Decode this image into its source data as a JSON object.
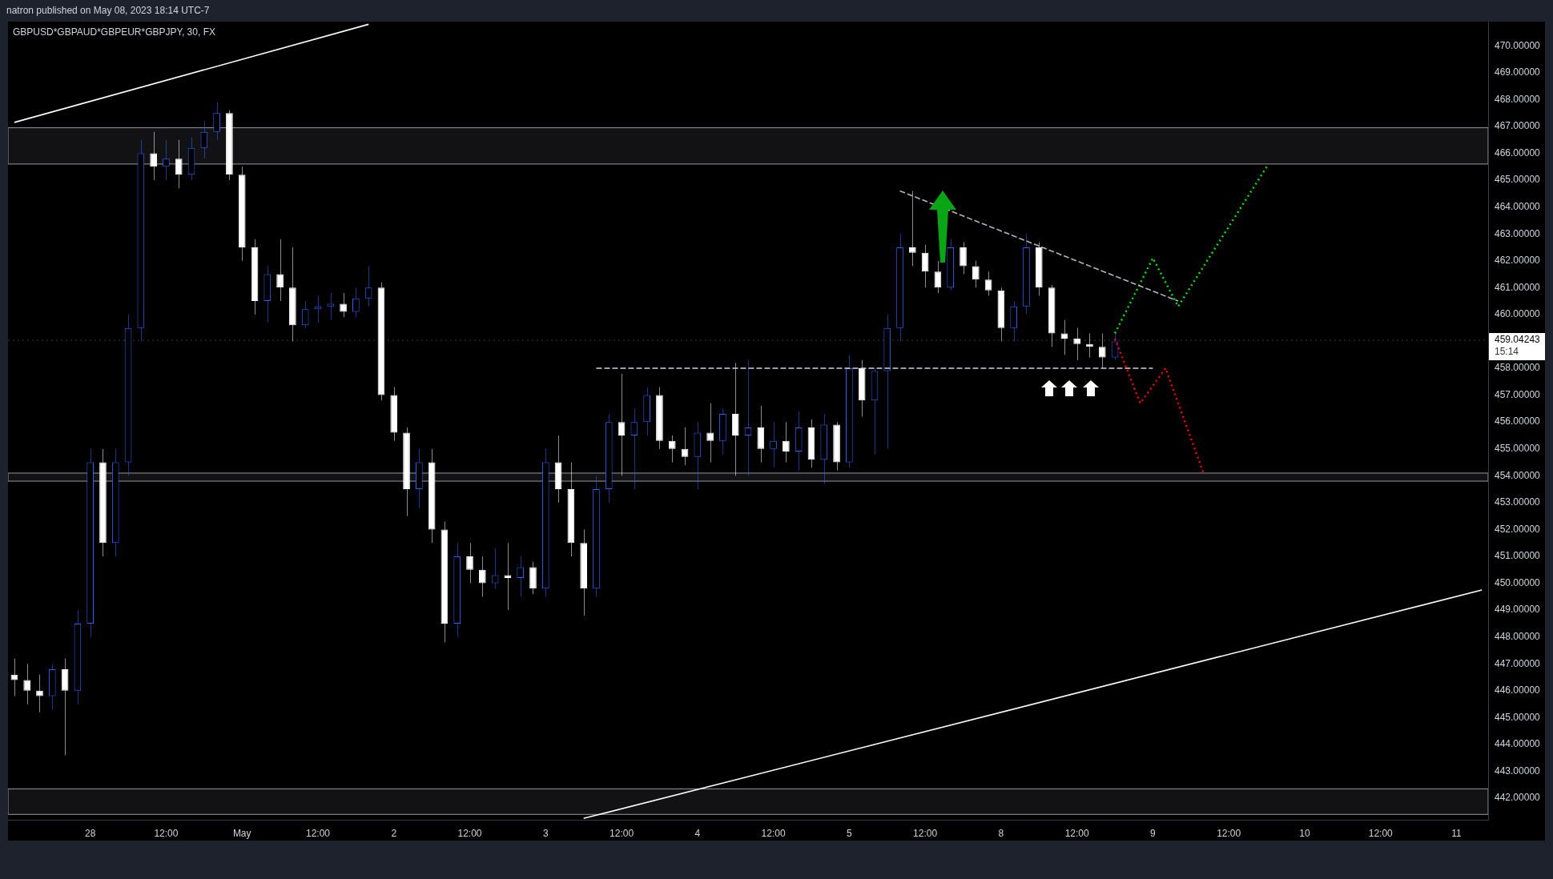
{
  "chart_data": {
    "type": "candlestick",
    "title": "GBPUSD*GBPAUD*GBPEUR*GBPJPY, 30, FX",
    "annotations": [
      "natron published on May 08, 2023 18:14 UTC-7",
      "15:14"
    ],
    "categories": [
      null,
      null,
      null,
      null,
      null,
      null,
      "28",
      null,
      null,
      null,
      null,
      null,
      "12:00",
      null,
      null,
      null,
      null,
      null,
      "May",
      null,
      null,
      null,
      null,
      null,
      "12:00",
      null,
      null,
      null,
      null,
      null,
      "2",
      null,
      null,
      null,
      null,
      null,
      "12:00",
      null,
      null,
      null,
      null,
      null,
      "3",
      null,
      null,
      null,
      null,
      null,
      "12:00",
      null,
      null,
      null,
      null,
      null,
      "4",
      null,
      null,
      null,
      null,
      null,
      "12:00",
      null,
      null,
      null,
      null,
      null,
      "5",
      null,
      null,
      null,
      null,
      null,
      "12:00",
      null,
      null,
      null,
      null,
      null,
      "8",
      null,
      null,
      null,
      null,
      null,
      "12:00",
      null,
      null,
      null,
      null,
      null,
      "9",
      null,
      null,
      null,
      null,
      null,
      "12:00",
      null,
      null,
      null,
      null,
      null,
      "10",
      null,
      null,
      null,
      null,
      null,
      "12:00",
      null,
      null,
      null,
      null,
      null,
      "11",
      null,
      null
    ],
    "ohlc": [
      [
        446.6,
        447.2,
        445.8,
        446.4
      ],
      [
        446.4,
        447,
        445.5,
        446.0
      ],
      [
        446.0,
        446.6,
        445.2,
        445.8
      ],
      [
        445.8,
        447,
        445.3,
        446.8
      ],
      [
        446.8,
        447.2,
        443.6,
        446.0
      ],
      [
        446.0,
        449,
        445.5,
        448.5
      ],
      [
        448.5,
        455.0,
        448,
        454.5
      ],
      [
        454.5,
        455,
        451,
        451.5
      ],
      [
        451.5,
        455,
        451,
        454.5
      ],
      [
        454.5,
        460,
        454,
        459.5
      ],
      [
        459.5,
        466.5,
        459,
        466
      ],
      [
        466,
        466.8,
        465,
        465.5
      ],
      [
        465.5,
        466.5,
        465,
        465.8
      ],
      [
        465.8,
        466.5,
        464.7,
        465.2
      ],
      [
        465.2,
        466.6,
        465,
        466.2
      ],
      [
        466.2,
        467.2,
        465.8,
        466.8
      ],
      [
        466.8,
        467.9,
        466.5,
        467.5
      ],
      [
        467.5,
        467.6,
        465,
        465.2
      ],
      [
        465.2,
        465.5,
        462,
        462.5
      ],
      [
        462.5,
        462.8,
        460,
        460.5
      ],
      [
        460.5,
        461.8,
        459.7,
        461.5
      ],
      [
        461.5,
        462.8,
        460.5,
        461
      ],
      [
        461,
        462.5,
        459,
        459.6
      ],
      [
        459.6,
        460.5,
        459.5,
        460.2
      ],
      [
        460.2,
        460.7,
        459.7,
        460.3
      ],
      [
        460.3,
        460.8,
        459.8,
        460.4
      ],
      [
        460.4,
        460.8,
        459.9,
        460.1
      ],
      [
        460.1,
        461,
        459.9,
        460.6
      ],
      [
        460.6,
        461.8,
        460.3,
        461
      ],
      [
        461,
        461.2,
        456.8,
        457
      ],
      [
        457,
        457.3,
        455.3,
        455.6
      ],
      [
        455.6,
        455.8,
        452.5,
        453.5
      ],
      [
        453.5,
        455,
        452.8,
        454.5
      ],
      [
        454.5,
        455,
        451.5,
        452
      ],
      [
        452,
        452.3,
        447.8,
        448.5
      ],
      [
        448.5,
        451.5,
        448,
        451
      ],
      [
        451,
        451.5,
        450,
        450.5
      ],
      [
        450.5,
        451,
        449.5,
        450
      ],
      [
        450,
        451.3,
        449.8,
        450.3
      ],
      [
        450.3,
        451.5,
        449,
        450.2
      ],
      [
        450.2,
        451,
        449.5,
        450.6
      ],
      [
        450.6,
        450.8,
        449.6,
        449.8
      ],
      [
        449.8,
        455,
        449.5,
        454.5
      ],
      [
        454.5,
        455.5,
        453,
        453.5
      ],
      [
        453.5,
        454.5,
        451,
        451.5
      ],
      [
        451.5,
        452,
        448.8,
        449.8
      ],
      [
        449.8,
        454,
        449.5,
        453.5
      ],
      [
        453.5,
        456.3,
        453,
        456
      ],
      [
        456,
        457.8,
        454,
        455.5
      ],
      [
        455.5,
        456.5,
        453.5,
        456
      ],
      [
        456,
        457.3,
        455.5,
        457
      ],
      [
        457,
        457.3,
        455,
        455.3
      ],
      [
        455.3,
        455.5,
        454.5,
        455
      ],
      [
        455,
        455.8,
        454.4,
        454.7
      ],
      [
        454.7,
        456,
        453.5,
        455.6
      ],
      [
        455.6,
        456.7,
        454.5,
        455.3
      ],
      [
        455.3,
        456.5,
        454.8,
        456.3
      ],
      [
        456.3,
        458.2,
        454,
        455.5
      ],
      [
        455.5,
        458.3,
        454,
        455.8
      ],
      [
        455.8,
        456.6,
        454.5,
        455
      ],
      [
        455,
        456,
        454.3,
        455.3
      ],
      [
        455.3,
        456,
        454.5,
        454.9
      ],
      [
        454.9,
        456.4,
        454.2,
        455.8
      ],
      [
        455.8,
        456.1,
        454.3,
        454.6
      ],
      [
        454.6,
        456.3,
        453.7,
        455.9
      ],
      [
        455.9,
        456,
        454.2,
        454.5
      ],
      [
        454.5,
        458.5,
        454.3,
        458
      ],
      [
        458,
        458.3,
        456.2,
        456.8
      ],
      [
        456.8,
        458,
        454.8,
        457.9
      ],
      [
        457.9,
        460,
        455,
        459.5
      ],
      [
        459.5,
        463,
        459,
        462.5
      ],
      [
        462.5,
        464.6,
        461.8,
        462.3
      ],
      [
        462.3,
        462.6,
        461,
        461.6
      ],
      [
        461.6,
        462,
        460.8,
        461
      ],
      [
        461,
        462.8,
        460.9,
        462.5
      ],
      [
        462.5,
        462.7,
        461.5,
        461.8
      ],
      [
        461.8,
        462,
        461,
        461.3
      ],
      [
        461.3,
        461.6,
        460.7,
        460.9
      ],
      [
        460.9,
        461,
        459,
        459.5
      ],
      [
        459.5,
        460.5,
        459,
        460.3
      ],
      [
        460.3,
        463,
        460,
        462.5
      ],
      [
        462.5,
        462.7,
        460.7,
        461
      ],
      [
        461,
        461.1,
        458.8,
        459.3
      ],
      [
        459.3,
        459.8,
        458.5,
        459.1
      ],
      [
        459.1,
        459.5,
        458.3,
        458.9
      ],
      [
        458.9,
        459.3,
        458.4,
        458.8
      ],
      [
        458.8,
        459.3,
        458,
        458.4
      ],
      [
        458.4,
        459.4,
        458.3,
        459.0
      ],
      null,
      null,
      null,
      null,
      null,
      null,
      null,
      null,
      null,
      null,
      null,
      null,
      null,
      null,
      null,
      null,
      null,
      null,
      null,
      null,
      null,
      null,
      null,
      null,
      null,
      null,
      null,
      null,
      null
    ],
    "colors": [
      "#ffffff",
      "#ffffff",
      "#ffffff",
      "#2962ff",
      "#ffffff",
      "#2962ff",
      "#2962ff",
      "#ffffff",
      "#2962ff",
      "#2962ff",
      "#2962ff",
      "#ffffff",
      "#2962ff",
      "#ffffff",
      "#2962ff",
      "#2962ff",
      "#2962ff",
      "#ffffff",
      "#ffffff",
      "#ffffff",
      "#2962ff",
      "#ffffff",
      "#ffffff",
      "#2962ff",
      "#2962ff",
      "#2962ff",
      "#ffffff",
      "#2962ff",
      "#2962ff",
      "#ffffff",
      "#ffffff",
      "#ffffff",
      "#2962ff",
      "#ffffff",
      "#ffffff",
      "#2962ff",
      "#ffffff",
      "#ffffff",
      "#2962ff",
      "#ffffff",
      "#2962ff",
      "#ffffff",
      "#2962ff",
      "#ffffff",
      "#ffffff",
      "#ffffff",
      "#2962ff",
      "#2962ff",
      "#ffffff",
      "#2962ff",
      "#2962ff",
      "#ffffff",
      "#ffffff",
      "#ffffff",
      "#2962ff",
      "#ffffff",
      "#2962ff",
      "#ffffff",
      "#2962ff",
      "#ffffff",
      "#2962ff",
      "#ffffff",
      "#2962ff",
      "#ffffff",
      "#2962ff",
      "#ffffff",
      "#2962ff",
      "#ffffff",
      "#2962ff",
      "#2962ff",
      "#2962ff",
      "#ffffff",
      "#ffffff",
      "#ffffff",
      "#2962ff",
      "#ffffff",
      "#ffffff",
      "#ffffff",
      "#ffffff",
      "#2962ff",
      "#2962ff",
      "#ffffff",
      "#ffffff",
      "#ffffff",
      "#ffffff",
      "#ffffff",
      "#ffffff",
      "#2962ff",
      null,
      null,
      null,
      null,
      null,
      null,
      null,
      null,
      null,
      null,
      null,
      null,
      null,
      null,
      null,
      null,
      null,
      null,
      null,
      null,
      null,
      null,
      null,
      null,
      null,
      null,
      null,
      null,
      null
    ],
    "series": [
      {
        "type": "line",
        "color": "#ffffff",
        "line_style": "solid",
        "values": [
          467.15,
          null,
          null,
          null,
          null,
          null,
          null,
          null,
          null,
          null,
          null,
          null,
          null,
          null,
          null,
          null,
          null,
          null,
          null,
          null,
          null,
          null,
          null,
          null,
          null,
          null,
          null,
          null,
          470.8,
          null,
          null,
          null,
          null,
          null,
          null,
          null,
          null,
          null,
          null,
          null,
          null,
          null,
          null,
          null,
          null,
          null,
          null,
          null,
          null,
          null,
          null,
          null,
          null,
          null,
          null,
          null,
          null,
          null,
          null,
          null,
          null,
          null,
          null,
          null,
          null,
          null,
          null,
          null,
          null,
          null,
          null,
          null,
          null,
          null,
          null,
          null,
          null,
          null,
          null,
          null,
          null,
          null,
          null,
          null,
          null,
          null,
          null,
          null,
          null,
          null,
          null,
          null,
          null,
          null,
          null,
          null,
          null,
          null,
          null,
          null,
          null,
          null,
          null,
          null,
          null,
          null,
          null,
          null,
          null,
          null,
          null,
          null,
          null,
          null,
          null,
          null,
          null
        ]
      },
      {
        "type": "line",
        "color": "#ffffff",
        "line_style": "solid",
        "values": [
          null,
          null,
          null,
          null,
          null,
          null,
          null,
          null,
          null,
          null,
          null,
          null,
          null,
          null,
          null,
          null,
          null,
          null,
          null,
          null,
          null,
          null,
          null,
          null,
          null,
          null,
          null,
          null,
          null,
          null,
          null,
          null,
          null,
          null,
          null,
          null,
          null,
          null,
          null,
          null,
          null,
          null,
          null,
          null,
          null,
          441.25,
          null,
          null,
          null,
          null,
          null,
          null,
          null,
          null,
          null,
          null,
          null,
          null,
          null,
          null,
          null,
          null,
          null,
          null,
          null,
          null,
          null,
          null,
          null,
          null,
          null,
          null,
          null,
          null,
          null,
          null,
          null,
          null,
          null,
          null,
          null,
          null,
          null,
          null,
          null,
          null,
          null,
          null,
          null,
          null,
          null,
          null,
          null,
          null,
          null,
          null,
          null,
          null,
          null,
          null,
          null,
          null,
          null,
          null,
          null,
          null,
          null,
          null,
          null,
          null,
          null,
          null,
          null,
          null,
          null,
          null,
          449.75
        ]
      },
      {
        "type": "line",
        "color": "#b2b5be",
        "line_style": "dashed",
        "values": [
          null,
          null,
          null,
          null,
          null,
          null,
          null,
          null,
          null,
          null,
          null,
          null,
          null,
          null,
          null,
          null,
          null,
          null,
          null,
          null,
          null,
          null,
          null,
          null,
          null,
          null,
          null,
          null,
          null,
          null,
          null,
          null,
          null,
          null,
          null,
          null,
          null,
          null,
          null,
          null,
          null,
          null,
          null,
          null,
          null,
          null,
          null,
          null,
          null,
          null,
          null,
          null,
          null,
          null,
          null,
          null,
          null,
          null,
          null,
          null,
          null,
          null,
          null,
          null,
          null,
          null,
          null,
          null,
          null,
          null,
          464.6,
          null,
          null,
          null,
          null,
          null,
          null,
          null,
          null,
          null,
          null,
          null,
          null,
          null,
          null,
          null,
          null,
          null,
          null,
          null,
          null,
          null,
          460.5,
          null,
          null,
          null,
          null,
          null,
          null,
          null,
          null,
          null,
          null,
          null,
          null,
          null,
          null,
          null,
          null,
          null,
          null,
          null,
          null,
          null,
          null,
          null,
          null
        ]
      },
      {
        "type": "line",
        "color": "#d1d4dc",
        "line_style": "dashed",
        "values": [
          null,
          null,
          null,
          null,
          null,
          null,
          null,
          null,
          null,
          null,
          null,
          null,
          null,
          null,
          null,
          null,
          null,
          null,
          null,
          null,
          null,
          null,
          null,
          null,
          null,
          null,
          null,
          null,
          null,
          null,
          null,
          null,
          null,
          null,
          null,
          null,
          null,
          null,
          null,
          null,
          null,
          null,
          null,
          null,
          null,
          null,
          458,
          null,
          null,
          null,
          null,
          null,
          null,
          null,
          null,
          null,
          null,
          null,
          null,
          null,
          null,
          null,
          null,
          null,
          null,
          null,
          null,
          null,
          null,
          null,
          null,
          null,
          null,
          null,
          null,
          null,
          null,
          null,
          null,
          null,
          null,
          null,
          null,
          null,
          null,
          null,
          null,
          null,
          null,
          null,
          458,
          null,
          null,
          null,
          null,
          null,
          null,
          null,
          null,
          null,
          null,
          null,
          null,
          null,
          null,
          null,
          null,
          null,
          null,
          null,
          null,
          null,
          null,
          null,
          null,
          null,
          null
        ]
      },
      {
        "type": "line",
        "color": "#00e600",
        "line_style": "dotted",
        "values": [
          null,
          null,
          null,
          null,
          null,
          null,
          null,
          null,
          null,
          null,
          null,
          null,
          null,
          null,
          null,
          null,
          null,
          null,
          null,
          null,
          null,
          null,
          null,
          null,
          null,
          null,
          null,
          null,
          null,
          null,
          null,
          null,
          null,
          null,
          null,
          null,
          null,
          null,
          null,
          null,
          null,
          null,
          null,
          null,
          null,
          null,
          null,
          null,
          null,
          null,
          null,
          null,
          null,
          null,
          null,
          null,
          null,
          null,
          null,
          null,
          null,
          null,
          null,
          null,
          null,
          null,
          null,
          null,
          null,
          null,
          null,
          null,
          null,
          null,
          null,
          null,
          null,
          null,
          null,
          null,
          null,
          null,
          null,
          null,
          null,
          null,
          null,
          459.3,
          null,
          null,
          462.1,
          null,
          460.3,
          null,
          null,
          null,
          null,
          null,
          null,
          465.5,
          null,
          null,
          null,
          null,
          null,
          null,
          null,
          null,
          null,
          null,
          null,
          null,
          null,
          null,
          null,
          null,
          null
        ]
      },
      {
        "type": "line",
        "color": "#ff0000",
        "line_style": "dotted",
        "values": [
          null,
          null,
          null,
          null,
          null,
          null,
          null,
          null,
          null,
          null,
          null,
          null,
          null,
          null,
          null,
          null,
          null,
          null,
          null,
          null,
          null,
          null,
          null,
          null,
          null,
          null,
          null,
          null,
          null,
          null,
          null,
          null,
          null,
          null,
          null,
          null,
          null,
          null,
          null,
          null,
          null,
          null,
          null,
          null,
          null,
          null,
          null,
          null,
          null,
          null,
          null,
          null,
          null,
          null,
          null,
          null,
          null,
          null,
          null,
          null,
          null,
          null,
          null,
          null,
          null,
          null,
          null,
          null,
          null,
          null,
          null,
          null,
          null,
          null,
          null,
          null,
          null,
          null,
          null,
          null,
          null,
          null,
          null,
          null,
          null,
          null,
          null,
          459.1,
          null,
          456.7,
          null,
          458.0,
          null,
          null,
          454.1,
          null,
          null,
          null,
          null,
          null,
          null,
          null,
          null,
          null,
          null,
          null,
          null,
          null,
          null,
          null,
          null,
          null,
          null,
          null,
          null,
          null,
          null
        ]
      }
    ],
    "ylim": [
      441.2,
      470.9
    ],
    "yticks": [
      {
        "value": 442,
        "label": "442.00000"
      },
      {
        "value": 443,
        "label": "443.00000"
      },
      {
        "value": 444,
        "label": "444.00000"
      },
      {
        "value": 445,
        "label": "445.00000"
      },
      {
        "value": 446,
        "label": "446.00000"
      },
      {
        "value": 447,
        "label": "447.00000"
      },
      {
        "value": 448,
        "label": "448.00000"
      },
      {
        "value": 449,
        "label": "449.00000"
      },
      {
        "value": 450,
        "label": "450.00000"
      },
      {
        "value": 451,
        "label": "451.00000"
      },
      {
        "value": 452,
        "label": "452.00000"
      },
      {
        "value": 453,
        "label": "453.00000"
      },
      {
        "value": 454,
        "label": "454.00000"
      },
      {
        "value": 455,
        "label": "455.00000"
      },
      {
        "value": 456,
        "label": "456.00000"
      },
      {
        "value": 457,
        "label": "457.00000"
      },
      {
        "value": 458,
        "label": "458.00000"
      },
      {
        "value": 460,
        "label": "460.00000"
      },
      {
        "value": 461,
        "label": "461.00000"
      },
      {
        "value": 462,
        "label": "462.00000"
      },
      {
        "value": 463,
        "label": "463.00000"
      },
      {
        "value": 464,
        "label": "464.00000"
      },
      {
        "value": 465,
        "label": "465.00000"
      },
      {
        "value": 466,
        "label": "466.00000"
      },
      {
        "value": 467,
        "label": "467.00000"
      },
      {
        "value": 468,
        "label": "468.00000"
      },
      {
        "value": 469,
        "label": "469.00000"
      },
      {
        "value": 470,
        "label": "470.00000"
      }
    ],
    "bands": [
      {
        "axis": "y",
        "from": 465.6,
        "to": 466.95,
        "color": "#9598a1"
      },
      {
        "axis": "y",
        "from": 453.8,
        "to": 454.1,
        "color": "#9598a1"
      },
      {
        "axis": "y",
        "from": 441.4,
        "to": 442.35,
        "color": "#9598a1"
      }
    ],
    "ref_lines": [
      {
        "axis": "y",
        "value": 459.04243,
        "label": "459.04243",
        "line_style": "dotted",
        "color": "#363a45"
      }
    ],
    "grid": false,
    "legend": false
  }
}
